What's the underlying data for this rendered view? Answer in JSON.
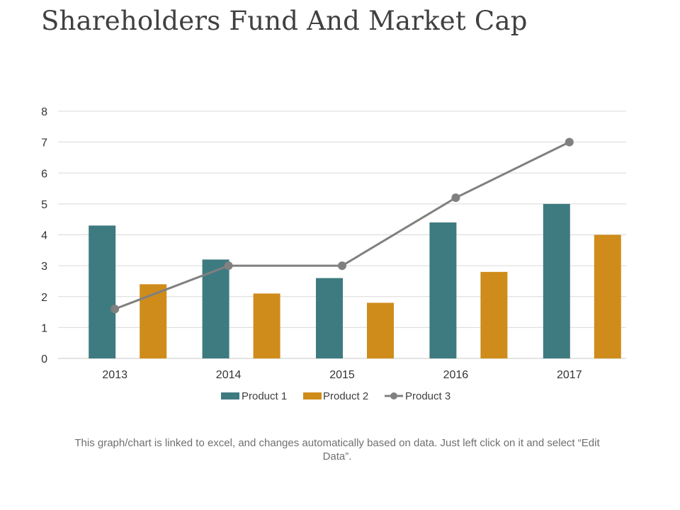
{
  "slide": {
    "title": "Shareholders Fund And Market Cap",
    "footnote": "This graph/chart is linked to excel, and changes automatically based on data. Just left click on it and select “Edit Data”."
  },
  "chart_data": {
    "type": "bar",
    "categories": [
      "2013",
      "2014",
      "2015",
      "2016",
      "2017"
    ],
    "series": [
      {
        "name": "Product 1",
        "kind": "bar",
        "color": "#3e7b80",
        "values": [
          4.3,
          3.2,
          2.6,
          4.4,
          5.0
        ]
      },
      {
        "name": "Product 2",
        "kind": "bar",
        "color": "#cf8c1b",
        "values": [
          2.4,
          2.1,
          1.8,
          2.8,
          4.0
        ]
      },
      {
        "name": "Product 3",
        "kind": "line",
        "color": "#808080",
        "values": [
          1.6,
          3.0,
          3.0,
          5.2,
          7.0
        ]
      }
    ],
    "ylim": [
      0,
      8
    ],
    "yticks": [
      "0",
      "1",
      "2",
      "3",
      "4",
      "5",
      "6",
      "7",
      "8"
    ],
    "grid": true,
    "legend": "bottom",
    "title": "",
    "xlabel": "",
    "ylabel": ""
  }
}
